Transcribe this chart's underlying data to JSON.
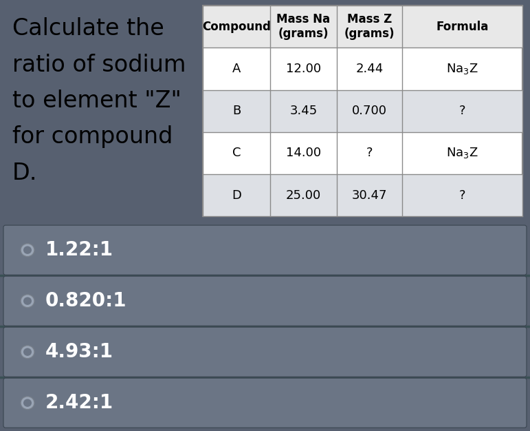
{
  "question_lines": [
    "Calculate the",
    "ratio of sodium",
    "to element \"Z\"",
    "for compound",
    "D."
  ],
  "table_headers": [
    "Compound",
    "Mass Na\n(grams)",
    "Mass Z\n(grams)",
    "Formula"
  ],
  "table_rows": [
    [
      "A",
      "12.00",
      "2.44",
      "Na₃Z"
    ],
    [
      "B",
      "3.45",
      "0.700",
      "?"
    ],
    [
      "C",
      "14.00",
      "?",
      "Na₃Z"
    ],
    [
      "D",
      "25.00",
      "30.47",
      "?"
    ]
  ],
  "answer_choices": [
    "1.22:1",
    "0.820:1",
    "4.93:1",
    "2.42:1"
  ],
  "top_bg": "#c5cad2",
  "bottom_bg": "#576070",
  "answer_box_color": "#6b7585",
  "answer_box_sep_color": "#3a5055",
  "table_white": "#ffffff",
  "table_light_gray": "#e8e8e8",
  "table_row_alt": "#dde0e5",
  "table_border": "#8a8a8a",
  "question_fontsize": 24,
  "table_header_fontsize": 12,
  "table_cell_fontsize": 13,
  "answer_fontsize": 20
}
